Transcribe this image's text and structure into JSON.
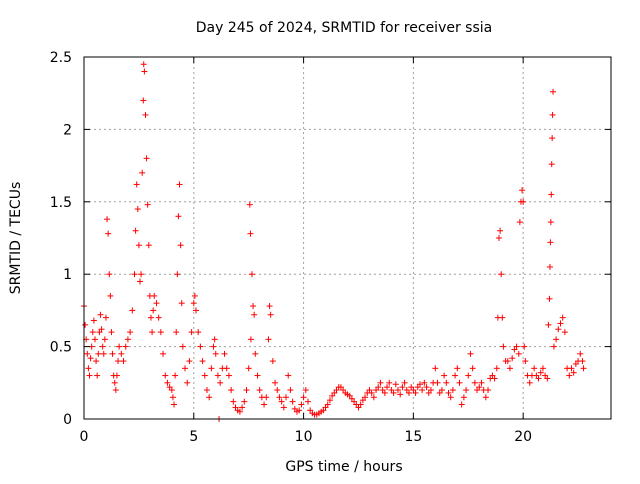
{
  "chart_data": {
    "type": "scatter",
    "title": "Day 245 of 2024, SRMTID for receiver ssia",
    "xlabel": "GPS time / hours",
    "ylabel": "SRMTID / TECUs",
    "xlim": [
      0,
      24
    ],
    "ylim": [
      0,
      2.5
    ],
    "x_ticks": [
      0,
      5,
      10,
      15,
      20
    ],
    "x_tick_labels": [
      "0",
      "5",
      "10",
      "15",
      "20"
    ],
    "y_ticks": [
      0,
      0.5,
      1,
      1.5,
      2,
      2.5
    ],
    "y_tick_labels": [
      "0",
      "0.5",
      "1",
      "1.5",
      "2",
      "2.5"
    ],
    "grid": true,
    "marker": "plus",
    "color": "#ff0000",
    "series": [
      {
        "name": "SRMTID",
        "points": [
          [
            0.0,
            0.78
          ],
          [
            0.05,
            0.65
          ],
          [
            0.1,
            0.55
          ],
          [
            0.15,
            0.45
          ],
          [
            0.2,
            0.35
          ],
          [
            0.25,
            0.3
          ],
          [
            0.3,
            0.42
          ],
          [
            0.35,
            0.5
          ],
          [
            0.4,
            0.6
          ],
          [
            0.45,
            0.68
          ],
          [
            0.5,
            0.55
          ],
          [
            0.55,
            0.4
          ],
          [
            0.6,
            0.3
          ],
          [
            0.65,
            0.45
          ],
          [
            0.7,
            0.6
          ],
          [
            0.75,
            0.72
          ],
          [
            0.8,
            0.62
          ],
          [
            0.85,
            0.5
          ],
          [
            0.9,
            0.45
          ],
          [
            0.95,
            0.55
          ],
          [
            1.0,
            0.7
          ],
          [
            1.05,
            1.38
          ],
          [
            1.1,
            1.28
          ],
          [
            1.15,
            1.0
          ],
          [
            1.2,
            0.85
          ],
          [
            1.25,
            0.6
          ],
          [
            1.3,
            0.45
          ],
          [
            1.35,
            0.3
          ],
          [
            1.4,
            0.25
          ],
          [
            1.45,
            0.2
          ],
          [
            1.5,
            0.3
          ],
          [
            1.55,
            0.4
          ],
          [
            1.6,
            0.5
          ],
          [
            1.7,
            0.45
          ],
          [
            1.8,
            0.4
          ],
          [
            1.9,
            0.5
          ],
          [
            2.0,
            0.55
          ],
          [
            2.1,
            0.6
          ],
          [
            2.2,
            0.75
          ],
          [
            2.3,
            1.0
          ],
          [
            2.35,
            1.3
          ],
          [
            2.4,
            1.62
          ],
          [
            2.45,
            1.45
          ],
          [
            2.5,
            1.2
          ],
          [
            2.55,
            0.95
          ],
          [
            2.6,
            1.0
          ],
          [
            2.65,
            1.7
          ],
          [
            2.7,
            2.2
          ],
          [
            2.72,
            2.45
          ],
          [
            2.75,
            2.4
          ],
          [
            2.8,
            2.1
          ],
          [
            2.85,
            1.8
          ],
          [
            2.9,
            1.48
          ],
          [
            2.95,
            1.2
          ],
          [
            3.0,
            0.85
          ],
          [
            3.05,
            0.7
          ],
          [
            3.1,
            0.6
          ],
          [
            3.15,
            0.75
          ],
          [
            3.2,
            0.85
          ],
          [
            3.3,
            0.8
          ],
          [
            3.4,
            0.7
          ],
          [
            3.5,
            0.6
          ],
          [
            3.6,
            0.45
          ],
          [
            3.7,
            0.3
          ],
          [
            3.8,
            0.25
          ],
          [
            3.9,
            0.22
          ],
          [
            4.0,
            0.2
          ],
          [
            4.05,
            0.15
          ],
          [
            4.1,
            0.1
          ],
          [
            4.15,
            0.3
          ],
          [
            4.2,
            0.6
          ],
          [
            4.25,
            1.0
          ],
          [
            4.3,
            1.4
          ],
          [
            4.35,
            1.62
          ],
          [
            4.4,
            1.2
          ],
          [
            4.45,
            0.8
          ],
          [
            4.5,
            0.5
          ],
          [
            4.6,
            0.35
          ],
          [
            4.7,
            0.25
          ],
          [
            4.8,
            0.4
          ],
          [
            4.9,
            0.6
          ],
          [
            5.0,
            0.8
          ],
          [
            5.05,
            0.85
          ],
          [
            5.1,
            0.75
          ],
          [
            5.2,
            0.6
          ],
          [
            5.3,
            0.5
          ],
          [
            5.4,
            0.4
          ],
          [
            5.5,
            0.3
          ],
          [
            5.6,
            0.2
          ],
          [
            5.7,
            0.15
          ],
          [
            5.8,
            0.35
          ],
          [
            5.9,
            0.5
          ],
          [
            5.95,
            0.55
          ],
          [
            6.0,
            0.45
          ],
          [
            6.1,
            0.3
          ],
          [
            6.15,
            0.0
          ],
          [
            6.2,
            0.25
          ],
          [
            6.3,
            0.35
          ],
          [
            6.4,
            0.45
          ],
          [
            6.5,
            0.35
          ],
          [
            6.6,
            0.3
          ],
          [
            6.7,
            0.2
          ],
          [
            6.8,
            0.12
          ],
          [
            6.9,
            0.08
          ],
          [
            7.0,
            0.06
          ],
          [
            7.1,
            0.05
          ],
          [
            7.2,
            0.08
          ],
          [
            7.3,
            0.12
          ],
          [
            7.4,
            0.2
          ],
          [
            7.5,
            0.35
          ],
          [
            7.55,
            1.48
          ],
          [
            7.58,
            1.28
          ],
          [
            7.6,
            0.55
          ],
          [
            7.65,
            1.0
          ],
          [
            7.7,
            0.78
          ],
          [
            7.75,
            0.72
          ],
          [
            7.8,
            0.45
          ],
          [
            7.9,
            0.3
          ],
          [
            8.0,
            0.2
          ],
          [
            8.1,
            0.15
          ],
          [
            8.2,
            0.1
          ],
          [
            8.3,
            0.15
          ],
          [
            8.4,
            0.55
          ],
          [
            8.45,
            0.78
          ],
          [
            8.5,
            0.72
          ],
          [
            8.6,
            0.4
          ],
          [
            8.7,
            0.25
          ],
          [
            8.8,
            0.2
          ],
          [
            8.9,
            0.15
          ],
          [
            9.0,
            0.12
          ],
          [
            9.1,
            0.08
          ],
          [
            9.2,
            0.15
          ],
          [
            9.3,
            0.3
          ],
          [
            9.4,
            0.2
          ],
          [
            9.5,
            0.12
          ],
          [
            9.6,
            0.07
          ],
          [
            9.7,
            0.05
          ],
          [
            9.8,
            0.06
          ],
          [
            9.9,
            0.1
          ],
          [
            10.0,
            0.15
          ],
          [
            10.1,
            0.2
          ],
          [
            10.2,
            0.12
          ],
          [
            10.3,
            0.06
          ],
          [
            10.4,
            0.04
          ],
          [
            10.5,
            0.03
          ],
          [
            10.6,
            0.03
          ],
          [
            10.7,
            0.04
          ],
          [
            10.8,
            0.05
          ],
          [
            10.9,
            0.06
          ],
          [
            11.0,
            0.08
          ],
          [
            11.1,
            0.1
          ],
          [
            11.2,
            0.13
          ],
          [
            11.3,
            0.16
          ],
          [
            11.4,
            0.18
          ],
          [
            11.5,
            0.2
          ],
          [
            11.6,
            0.22
          ],
          [
            11.7,
            0.22
          ],
          [
            11.8,
            0.2
          ],
          [
            11.9,
            0.18
          ],
          [
            12.0,
            0.17
          ],
          [
            12.1,
            0.16
          ],
          [
            12.2,
            0.14
          ],
          [
            12.3,
            0.12
          ],
          [
            12.4,
            0.1
          ],
          [
            12.5,
            0.08
          ],
          [
            12.6,
            0.1
          ],
          [
            12.7,
            0.13
          ],
          [
            12.8,
            0.15
          ],
          [
            12.9,
            0.18
          ],
          [
            13.0,
            0.2
          ],
          [
            13.1,
            0.18
          ],
          [
            13.2,
            0.15
          ],
          [
            13.3,
            0.2
          ],
          [
            13.4,
            0.22
          ],
          [
            13.5,
            0.25
          ],
          [
            13.6,
            0.2
          ],
          [
            13.7,
            0.18
          ],
          [
            13.8,
            0.22
          ],
          [
            13.9,
            0.25
          ],
          [
            14.0,
            0.2
          ],
          [
            14.1,
            0.18
          ],
          [
            14.2,
            0.24
          ],
          [
            14.3,
            0.2
          ],
          [
            14.4,
            0.17
          ],
          [
            14.5,
            0.22
          ],
          [
            14.6,
            0.25
          ],
          [
            14.7,
            0.2
          ],
          [
            14.8,
            0.18
          ],
          [
            14.9,
            0.22
          ],
          [
            15.0,
            0.2
          ],
          [
            15.1,
            0.18
          ],
          [
            15.2,
            0.22
          ],
          [
            15.3,
            0.24
          ],
          [
            15.4,
            0.2
          ],
          [
            15.5,
            0.25
          ],
          [
            15.6,
            0.22
          ],
          [
            15.7,
            0.18
          ],
          [
            15.8,
            0.2
          ],
          [
            15.9,
            0.25
          ],
          [
            16.0,
            0.35
          ],
          [
            16.1,
            0.25
          ],
          [
            16.2,
            0.18
          ],
          [
            16.3,
            0.2
          ],
          [
            16.4,
            0.3
          ],
          [
            16.5,
            0.25
          ],
          [
            16.6,
            0.18
          ],
          [
            16.7,
            0.15
          ],
          [
            16.8,
            0.2
          ],
          [
            16.9,
            0.3
          ],
          [
            17.0,
            0.35
          ],
          [
            17.1,
            0.25
          ],
          [
            17.2,
            0.1
          ],
          [
            17.3,
            0.15
          ],
          [
            17.4,
            0.2
          ],
          [
            17.5,
            0.3
          ],
          [
            17.6,
            0.45
          ],
          [
            17.7,
            0.35
          ],
          [
            17.8,
            0.25
          ],
          [
            17.9,
            0.2
          ],
          [
            18.0,
            0.22
          ],
          [
            18.1,
            0.25
          ],
          [
            18.2,
            0.2
          ],
          [
            18.3,
            0.15
          ],
          [
            18.4,
            0.2
          ],
          [
            18.5,
            0.28
          ],
          [
            18.6,
            0.3
          ],
          [
            18.7,
            0.28
          ],
          [
            18.8,
            0.35
          ],
          [
            18.85,
            0.7
          ],
          [
            18.9,
            1.25
          ],
          [
            18.95,
            1.3
          ],
          [
            19.0,
            1.0
          ],
          [
            19.05,
            0.7
          ],
          [
            19.1,
            0.5
          ],
          [
            19.2,
            0.4
          ],
          [
            19.3,
            0.4
          ],
          [
            19.4,
            0.35
          ],
          [
            19.5,
            0.42
          ],
          [
            19.6,
            0.48
          ],
          [
            19.7,
            0.5
          ],
          [
            19.8,
            0.45
          ],
          [
            19.85,
            1.36
          ],
          [
            19.9,
            1.5
          ],
          [
            19.95,
            1.58
          ],
          [
            20.0,
            1.5
          ],
          [
            20.05,
            0.5
          ],
          [
            20.1,
            0.4
          ],
          [
            20.2,
            0.3
          ],
          [
            20.3,
            0.25
          ],
          [
            20.4,
            0.3
          ],
          [
            20.5,
            0.35
          ],
          [
            20.6,
            0.3
          ],
          [
            20.7,
            0.28
          ],
          [
            20.8,
            0.32
          ],
          [
            20.9,
            0.35
          ],
          [
            21.0,
            0.3
          ],
          [
            21.1,
            0.28
          ],
          [
            21.15,
            0.65
          ],
          [
            21.2,
            0.83
          ],
          [
            21.22,
            1.05
          ],
          [
            21.24,
            1.22
          ],
          [
            21.26,
            1.36
          ],
          [
            21.28,
            1.55
          ],
          [
            21.3,
            1.76
          ],
          [
            21.32,
            1.94
          ],
          [
            21.34,
            2.1
          ],
          [
            21.36,
            2.26
          ],
          [
            21.4,
            0.5
          ],
          [
            21.5,
            0.55
          ],
          [
            21.6,
            0.62
          ],
          [
            21.7,
            0.66
          ],
          [
            21.8,
            0.7
          ],
          [
            21.9,
            0.6
          ],
          [
            22.0,
            0.35
          ],
          [
            22.1,
            0.3
          ],
          [
            22.2,
            0.35
          ],
          [
            22.3,
            0.32
          ],
          [
            22.4,
            0.38
          ],
          [
            22.5,
            0.4
          ],
          [
            22.6,
            0.45
          ],
          [
            22.7,
            0.4
          ],
          [
            22.75,
            0.35
          ]
        ]
      }
    ]
  }
}
